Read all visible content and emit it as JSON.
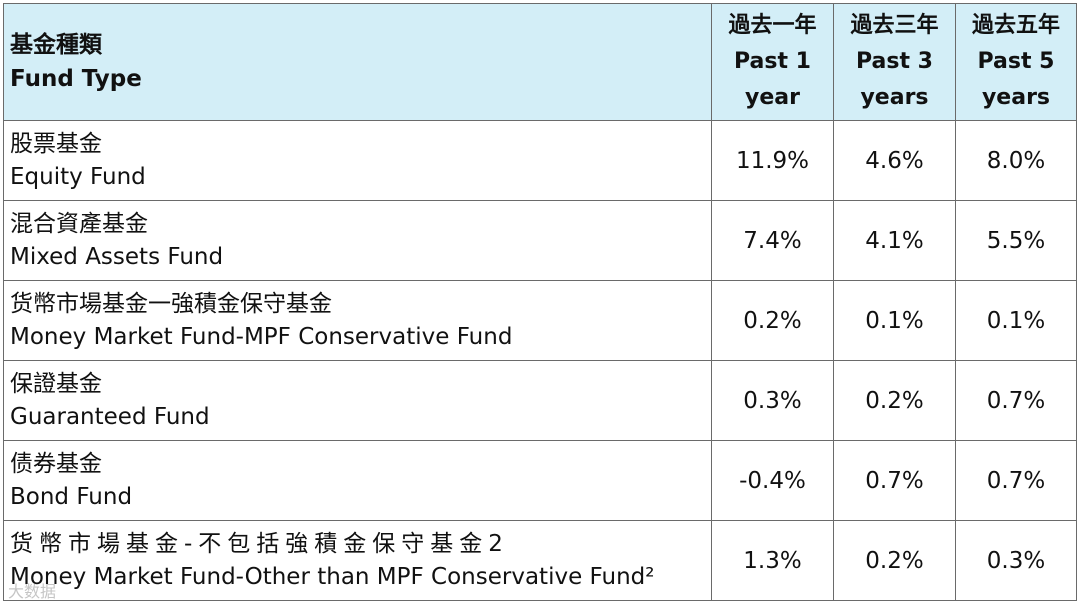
{
  "header": {
    "fund_type_zh": "基金種類",
    "fund_type_en": "Fund Type",
    "periods": [
      {
        "zh": "過去一年",
        "en1": "Past 1",
        "en2": "year"
      },
      {
        "zh": "過去三年",
        "en1": "Past 3",
        "en2": "years"
      },
      {
        "zh": "過去五年",
        "en1": "Past 5",
        "en2": "years"
      }
    ]
  },
  "rows": [
    {
      "zh": "股票基金",
      "en": "Equity Fund",
      "values": [
        "11.9%",
        "4.6%",
        "8.0%"
      ]
    },
    {
      "zh": "混合資產基金",
      "en": "Mixed Assets Fund",
      "values": [
        "7.4%",
        "4.1%",
        "5.5%"
      ]
    },
    {
      "zh": "货幣市場基金一強積金保守基金",
      "en": "Money Market Fund-MPF Conservative Fund",
      "values": [
        "0.2%",
        "0.1%",
        "0.1%"
      ]
    },
    {
      "zh": "保證基金",
      "en": "Guaranteed Fund",
      "values": [
        "0.3%",
        "0.2%",
        "0.7%"
      ]
    },
    {
      "zh": "债券基金",
      "en": "Bond Fund",
      "values": [
        "-0.4%",
        "0.7%",
        "0.7%"
      ]
    },
    {
      "zh": "货幣市場基金-不包括強積金保守基金2",
      "en": "Money Market Fund-Other than MPF Conservative Fund²",
      "values": [
        "1.3%",
        "0.2%",
        "0.3%"
      ]
    }
  ],
  "watermark": "大数据"
}
